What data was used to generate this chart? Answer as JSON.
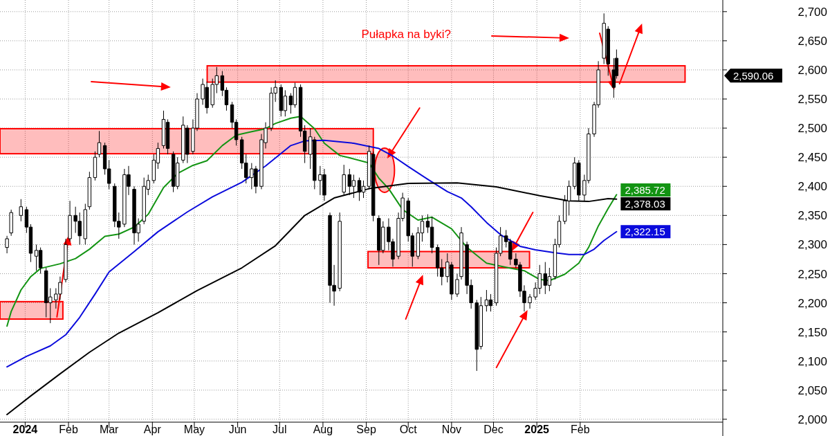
{
  "chart_data": {
    "type": "candlestick",
    "color": "#000000",
    "x": [
      "2023-12-19",
      "2023-12-22",
      "2023-12-29",
      "2024-01-02",
      "2024-01-05",
      "2024-01-09",
      "2024-01-12",
      "2024-01-16",
      "2024-01-19",
      "2024-01-23",
      "2024-01-26",
      "2024-01-30",
      "2024-02-02",
      "2024-02-06",
      "2024-02-09",
      "2024-02-13",
      "2024-02-16",
      "2024-02-20",
      "2024-02-23",
      "2024-02-27",
      "2024-03-01",
      "2024-03-05",
      "2024-03-08",
      "2024-03-12",
      "2024-03-15",
      "2024-03-19",
      "2024-03-22",
      "2024-03-26",
      "2024-03-29",
      "2024-04-02",
      "2024-04-05",
      "2024-04-09",
      "2024-04-12",
      "2024-04-16",
      "2024-04-19",
      "2024-04-23",
      "2024-04-26",
      "2024-04-30",
      "2024-05-03",
      "2024-05-07",
      "2024-05-10",
      "2024-05-14",
      "2024-05-17",
      "2024-05-21",
      "2024-05-24",
      "2024-05-28",
      "2024-05-31",
      "2024-06-04",
      "2024-06-07",
      "2024-06-11",
      "2024-06-14",
      "2024-06-18",
      "2024-06-21",
      "2024-06-25",
      "2024-06-28",
      "2024-07-02",
      "2024-07-05",
      "2024-07-09",
      "2024-07-12",
      "2024-07-16",
      "2024-07-19",
      "2024-07-23",
      "2024-07-26",
      "2024-07-30",
      "2024-08-02",
      "2024-08-06",
      "2024-08-09",
      "2024-08-13",
      "2024-08-16",
      "2024-08-20",
      "2024-08-23",
      "2024-08-27",
      "2024-08-30",
      "2024-09-03",
      "2024-09-06",
      "2024-09-10",
      "2024-09-13",
      "2024-09-17",
      "2024-09-20",
      "2024-09-24",
      "2024-09-27",
      "2024-10-01",
      "2024-10-04",
      "2024-10-08",
      "2024-10-11",
      "2024-10-15",
      "2024-10-18",
      "2024-10-22",
      "2024-10-25",
      "2024-10-29",
      "2024-11-01",
      "2024-11-05",
      "2024-11-08",
      "2024-11-12",
      "2024-11-15",
      "2024-11-19",
      "2024-11-22",
      "2024-11-26",
      "2024-11-29",
      "2024-12-03",
      "2024-12-06",
      "2024-12-10",
      "2024-12-13",
      "2024-12-17",
      "2024-12-20",
      "2024-12-23",
      "2024-12-27",
      "2024-12-31",
      "2025-01-03",
      "2025-01-07",
      "2025-01-10",
      "2025-01-14",
      "2025-01-17",
      "2025-01-21",
      "2025-01-24",
      "2025-01-28",
      "2025-01-31",
      "2025-02-04",
      "2025-02-07",
      "2025-02-11",
      "2025-02-14",
      "2025-02-18",
      "2025-02-21",
      "2025-02-25",
      "2025-02-27"
    ],
    "ohlc": [
      [
        2295,
        2315,
        2285,
        2310
      ],
      [
        2320,
        2360,
        2315,
        2355
      ],
      [
        2350,
        2378,
        2340,
        2365
      ],
      [
        2360,
        2365,
        2320,
        2330
      ],
      [
        2330,
        2335,
        2270,
        2285
      ],
      [
        2280,
        2300,
        2255,
        2290
      ],
      [
        2290,
        2295,
        2250,
        2260
      ],
      [
        2255,
        2260,
        2175,
        2200
      ],
      [
        2200,
        2225,
        2165,
        2210
      ],
      [
        2205,
        2225,
        2190,
        2215
      ],
      [
        2215,
        2245,
        2205,
        2235
      ],
      [
        2240,
        2310,
        2235,
        2300
      ],
      [
        2310,
        2375,
        2305,
        2350
      ],
      [
        2350,
        2365,
        2320,
        2340
      ],
      [
        2340,
        2355,
        2300,
        2315
      ],
      [
        2310,
        2370,
        2300,
        2360
      ],
      [
        2365,
        2425,
        2360,
        2415
      ],
      [
        2415,
        2460,
        2410,
        2450
      ],
      [
        2455,
        2495,
        2450,
        2475
      ],
      [
        2470,
        2475,
        2420,
        2430
      ],
      [
        2430,
        2445,
        2395,
        2405
      ],
      [
        2400,
        2405,
        2330,
        2340
      ],
      [
        2340,
        2355,
        2310,
        2330
      ],
      [
        2335,
        2430,
        2330,
        2420
      ],
      [
        2420,
        2435,
        2385,
        2400
      ],
      [
        2395,
        2400,
        2300,
        2320
      ],
      [
        2320,
        2345,
        2305,
        2335
      ],
      [
        2340,
        2415,
        2335,
        2400
      ],
      [
        2395,
        2420,
        2385,
        2410
      ],
      [
        2410,
        2455,
        2405,
        2445
      ],
      [
        2440,
        2475,
        2430,
        2465
      ],
      [
        2470,
        2530,
        2465,
        2515
      ],
      [
        2510,
        2515,
        2455,
        2465
      ],
      [
        2455,
        2460,
        2390,
        2400
      ],
      [
        2400,
        2450,
        2395,
        2440
      ],
      [
        2445,
        2520,
        2440,
        2505
      ],
      [
        2500,
        2505,
        2440,
        2455
      ],
      [
        2460,
        2515,
        2455,
        2500
      ],
      [
        2500,
        2560,
        2495,
        2550
      ],
      [
        2550,
        2585,
        2540,
        2575
      ],
      [
        2570,
        2580,
        2525,
        2535
      ],
      [
        2540,
        2585,
        2535,
        2575
      ],
      [
        2575,
        2605,
        2560,
        2590
      ],
      [
        2590,
        2598,
        2555,
        2565
      ],
      [
        2565,
        2570,
        2530,
        2540
      ],
      [
        2540,
        2545,
        2500,
        2510
      ],
      [
        2510,
        2515,
        2470,
        2480
      ],
      [
        2480,
        2485,
        2430,
        2440
      ],
      [
        2440,
        2455,
        2405,
        2415
      ],
      [
        2415,
        2440,
        2395,
        2430
      ],
      [
        2430,
        2435,
        2388,
        2400
      ],
      [
        2400,
        2490,
        2395,
        2480
      ],
      [
        2475,
        2510,
        2465,
        2500
      ],
      [
        2500,
        2570,
        2495,
        2560
      ],
      [
        2560,
        2582,
        2545,
        2570
      ],
      [
        2570,
        2575,
        2520,
        2530
      ],
      [
        2530,
        2565,
        2520,
        2555
      ],
      [
        2555,
        2560,
        2525,
        2540
      ],
      [
        2540,
        2578,
        2535,
        2570
      ],
      [
        2570,
        2575,
        2485,
        2495
      ],
      [
        2495,
        2505,
        2440,
        2460
      ],
      [
        2455,
        2500,
        2430,
        2485
      ],
      [
        2480,
        2485,
        2395,
        2410
      ],
      [
        2410,
        2435,
        2385,
        2420
      ],
      [
        2420,
        2430,
        2375,
        2385
      ],
      [
        2350,
        2355,
        2200,
        2230
      ],
      [
        2230,
        2265,
        2195,
        2220
      ],
      [
        2225,
        2355,
        2220,
        2340
      ],
      [
        2390,
        2437,
        2385,
        2420
      ],
      [
        2420,
        2430,
        2385,
        2400
      ],
      [
        2400,
        2420,
        2380,
        2410
      ],
      [
        2410,
        2415,
        2375,
        2390
      ],
      [
        2390,
        2410,
        2380,
        2400
      ],
      [
        2400,
        2470,
        2395,
        2460
      ],
      [
        2455,
        2460,
        2340,
        2350
      ],
      [
        2345,
        2350,
        2265,
        2290
      ],
      [
        2290,
        2340,
        2285,
        2330
      ],
      [
        2330,
        2345,
        2290,
        2305
      ],
      [
        2305,
        2310,
        2262,
        2275
      ],
      [
        2280,
        2355,
        2275,
        2345
      ],
      [
        2345,
        2389,
        2340,
        2380
      ],
      [
        2375,
        2380,
        2305,
        2315
      ],
      [
        2315,
        2320,
        2262,
        2280
      ],
      [
        2280,
        2330,
        2275,
        2320
      ],
      [
        2320,
        2350,
        2305,
        2340
      ],
      [
        2340,
        2352,
        2320,
        2330
      ],
      [
        2330,
        2348,
        2285,
        2295
      ],
      [
        2295,
        2300,
        2245,
        2260
      ],
      [
        2260,
        2275,
        2230,
        2245
      ],
      [
        2245,
        2285,
        2235,
        2270
      ],
      [
        2265,
        2270,
        2205,
        2215
      ],
      [
        2215,
        2250,
        2210,
        2240
      ],
      [
        2245,
        2330,
        2240,
        2320
      ],
      [
        2300,
        2305,
        2215,
        2230
      ],
      [
        2230,
        2240,
        2190,
        2200
      ],
      [
        2200,
        2205,
        2083,
        2120
      ],
      [
        2125,
        2210,
        2120,
        2195
      ],
      [
        2195,
        2222,
        2185,
        2205
      ],
      [
        2205,
        2215,
        2185,
        2195
      ],
      [
        2200,
        2295,
        2195,
        2285
      ],
      [
        2285,
        2330,
        2280,
        2315
      ],
      [
        2315,
        2325,
        2295,
        2305
      ],
      [
        2305,
        2310,
        2265,
        2275
      ],
      [
        2275,
        2285,
        2260,
        2265
      ],
      [
        2265,
        2270,
        2210,
        2220
      ],
      [
        2220,
        2230,
        2185,
        2200
      ],
      [
        2200,
        2215,
        2190,
        2210
      ],
      [
        2210,
        2235,
        2205,
        2225
      ],
      [
        2225,
        2265,
        2215,
        2250
      ],
      [
        2250,
        2270,
        2215,
        2230
      ],
      [
        2230,
        2260,
        2220,
        2245
      ],
      [
        2245,
        2310,
        2240,
        2300
      ],
      [
        2300,
        2350,
        2295,
        2340
      ],
      [
        2340,
        2385,
        2335,
        2375
      ],
      [
        2375,
        2410,
        2350,
        2400
      ],
      [
        2400,
        2450,
        2395,
        2440
      ],
      [
        2440,
        2445,
        2375,
        2385
      ],
      [
        2385,
        2420,
        2375,
        2410
      ],
      [
        2410,
        2500,
        2405,
        2490
      ],
      [
        2490,
        2545,
        2485,
        2540
      ],
      [
        2540,
        2615,
        2535,
        2600
      ],
      [
        2620,
        2697,
        2610,
        2680
      ],
      [
        2670,
        2675,
        2590,
        2610
      ],
      [
        2600,
        2620,
        2552,
        2570
      ],
      [
        2620,
        2635,
        2585,
        2590.06
      ]
    ],
    "value_labels": [
      null,
      null,
      null,
      null,
      null,
      null,
      null,
      null,
      null,
      null,
      null,
      null,
      null,
      null,
      null,
      null,
      null,
      null,
      null,
      null,
      null,
      null,
      null,
      null,
      null,
      null,
      null,
      null,
      null,
      null,
      null,
      null,
      null,
      null,
      null,
      null,
      null,
      null,
      null,
      null,
      null,
      null,
      null,
      null,
      null,
      null,
      null,
      null,
      null,
      null,
      null,
      null,
      null,
      null,
      null,
      null,
      null,
      null,
      null,
      null,
      null,
      null,
      null,
      null,
      null,
      null,
      null,
      null,
      null,
      null,
      null,
      null,
      null,
      null,
      null,
      null,
      null,
      null,
      null,
      null,
      null,
      null,
      null,
      null,
      null,
      null,
      null,
      null,
      null,
      null,
      null,
      null,
      null,
      null,
      null,
      null,
      null,
      null,
      null,
      null,
      null,
      null,
      null,
      null,
      null,
      null,
      null,
      null,
      null,
      null,
      null,
      null,
      null,
      null,
      null,
      null,
      null,
      null,
      null,
      null,
      null,
      null,
      null,
      null,
      "2,590.06"
    ],
    "series": [
      {
        "type": "line",
        "color": "#139413",
        "x": [
          "2023-12-19",
          "2023-12-22",
          "2023-12-29",
          "2024-01-05",
          "2024-01-12",
          "2024-01-26",
          "2024-02-06",
          "2024-02-16",
          "2024-02-27",
          "2024-03-08",
          "2024-03-19",
          "2024-03-29",
          "2024-04-09",
          "2024-04-19",
          "2024-04-30",
          "2024-05-10",
          "2024-05-21",
          "2024-05-31",
          "2024-06-11",
          "2024-06-21",
          "2024-06-28",
          "2024-07-09",
          "2024-07-16",
          "2024-07-26",
          "2024-08-02",
          "2024-08-13",
          "2024-08-20",
          "2024-09-03",
          "2024-09-10",
          "2024-09-17",
          "2024-09-27",
          "2024-10-08",
          "2024-10-18",
          "2024-11-01",
          "2024-11-12",
          "2024-11-26",
          "2024-12-10",
          "2024-12-23",
          "2025-01-03",
          "2025-01-10",
          "2025-01-21",
          "2025-01-31",
          "2025-02-07",
          "2025-02-14",
          "2025-02-21",
          "2025-02-27"
        ],
        "values": [
          2160,
          2185,
          2222,
          2245,
          2259,
          2267,
          2276,
          2292,
          2314,
          2318,
          2330,
          2352,
          2398,
          2422,
          2436,
          2444,
          2470,
          2488,
          2494,
          2499,
          2508,
          2517,
          2520,
          2499,
          2474,
          2453,
          2449,
          2440,
          2414,
          2396,
          2360,
          2342,
          2347,
          2327,
          2295,
          2268,
          2261,
          2255,
          2240,
          2238,
          2249,
          2268,
          2295,
          2332,
          2362,
          2385.72
        ],
        "value_labels": [
          null,
          null,
          null,
          null,
          null,
          null,
          null,
          null,
          null,
          null,
          null,
          null,
          null,
          null,
          null,
          null,
          null,
          null,
          null,
          null,
          null,
          null,
          null,
          null,
          null,
          null,
          null,
          null,
          null,
          null,
          null,
          null,
          null,
          null,
          null,
          null,
          null,
          null,
          null,
          null,
          null,
          null,
          null,
          null,
          null,
          "2,385.72"
        ]
      },
      {
        "type": "line",
        "color": "#0a0adc",
        "x": [
          "2023-12-19",
          "2024-01-02",
          "2024-01-19",
          "2024-01-30",
          "2024-02-09",
          "2024-02-20",
          "2024-03-01",
          "2024-03-19",
          "2024-04-05",
          "2024-04-26",
          "2024-05-14",
          "2024-06-04",
          "2024-06-21",
          "2024-07-09",
          "2024-07-19",
          "2024-08-02",
          "2024-08-23",
          "2024-09-10",
          "2024-09-20",
          "2024-10-01",
          "2024-10-15",
          "2024-10-29",
          "2024-11-08",
          "2024-11-15",
          "2024-11-26",
          "2024-12-06",
          "2024-12-20",
          "2024-12-31",
          "2025-01-14",
          "2025-01-24",
          "2025-02-04",
          "2025-02-11",
          "2025-02-18",
          "2025-02-27"
        ],
        "values": [
          2090,
          2108,
          2126,
          2145,
          2175,
          2215,
          2253,
          2288,
          2322,
          2356,
          2382,
          2407,
          2435,
          2470,
          2478,
          2479,
          2474,
          2465,
          2452,
          2434,
          2412,
          2391,
          2380,
          2365,
          2338,
          2317,
          2297,
          2291,
          2286,
          2283,
          2283,
          2292,
          2307,
          2322.15
        ],
        "value_labels": [
          null,
          null,
          null,
          null,
          null,
          null,
          null,
          null,
          null,
          null,
          null,
          null,
          null,
          null,
          null,
          null,
          null,
          null,
          null,
          null,
          null,
          null,
          null,
          null,
          null,
          null,
          null,
          null,
          null,
          null,
          null,
          null,
          null,
          "2,322.15"
        ]
      },
      {
        "type": "line",
        "color": "#000000",
        "x": [
          "2023-12-19",
          "2024-01-05",
          "2024-01-26",
          "2024-02-16",
          "2024-03-08",
          "2024-04-05",
          "2024-05-03",
          "2024-06-04",
          "2024-06-28",
          "2024-07-19",
          "2024-08-09",
          "2024-09-03",
          "2024-10-01",
          "2024-11-05",
          "2024-12-03",
          "2025-01-03",
          "2025-01-24",
          "2025-02-07",
          "2025-02-21",
          "2025-02-27"
        ],
        "values": [
          2008,
          2040,
          2078,
          2115,
          2148,
          2183,
          2221,
          2260,
          2298,
          2350,
          2380,
          2396,
          2405,
          2406,
          2399,
          2384,
          2375,
          2374,
          2379,
          2378.03
        ],
        "value_labels": [
          null,
          null,
          null,
          null,
          null,
          null,
          null,
          null,
          null,
          null,
          null,
          null,
          null,
          null,
          null,
          null,
          null,
          null,
          null,
          "2,378.03"
        ]
      }
    ],
    "bands": [
      {
        "axis": "y",
        "from": 2172,
        "to": 2202,
        "color": "#ff0000"
      },
      {
        "axis": "y",
        "from": 2456,
        "to": 2499,
        "color": "#ff0000"
      },
      {
        "axis": "y",
        "from": 2579,
        "to": 2607,
        "color": "#ff0000"
      },
      {
        "axis": "y",
        "from": 2260,
        "to": 2288,
        "color": "#ff0000"
      }
    ],
    "annotations": [
      "Pułapka na byki?"
    ],
    "xlim": [
      "2023-12-14",
      "2025-05-14"
    ],
    "ylim": [
      1995,
      2720
    ],
    "xticks": [
      {
        "value": "2024-01-01",
        "label": "2024"
      },
      {
        "value": "2024-02-01",
        "label": "Feb"
      },
      {
        "value": "2024-03-01",
        "label": "Mar"
      },
      {
        "value": "2024-04-01",
        "label": "Apr"
      },
      {
        "value": "2024-05-01",
        "label": "May"
      },
      {
        "value": "2024-06-01",
        "label": "Jun"
      },
      {
        "value": "2024-07-01",
        "label": "Jul"
      },
      {
        "value": "2024-08-01",
        "label": "Aug"
      },
      {
        "value": "2024-09-01",
        "label": "Sep"
      },
      {
        "value": "2024-10-01",
        "label": "Oct"
      },
      {
        "value": "2024-11-01",
        "label": "Nov"
      },
      {
        "value": "2024-12-01",
        "label": "Dec"
      },
      {
        "value": "2025-01-01",
        "label": "2025"
      },
      {
        "value": "2025-02-01",
        "label": "Feb"
      }
    ],
    "yticks": [
      {
        "value": 2000,
        "label": "2,000"
      },
      {
        "value": 2050,
        "label": "2,050"
      },
      {
        "value": 2100,
        "label": "2,100"
      },
      {
        "value": 2150,
        "label": "2,150"
      },
      {
        "value": 2200,
        "label": "2,200"
      },
      {
        "value": 2250,
        "label": "2,250"
      },
      {
        "value": 2300,
        "label": "2,300"
      },
      {
        "value": 2350,
        "label": "2,350"
      },
      {
        "value": 2400,
        "label": "2,400"
      },
      {
        "value": 2450,
        "label": "2,450"
      },
      {
        "value": 2500,
        "label": "2,500"
      },
      {
        "value": 2550,
        "label": "2,550"
      },
      {
        "value": 2600,
        "label": "2,600"
      },
      {
        "value": 2650,
        "label": "2,650"
      },
      {
        "value": 2700,
        "label": "2,700"
      }
    ],
    "grid": true
  }
}
